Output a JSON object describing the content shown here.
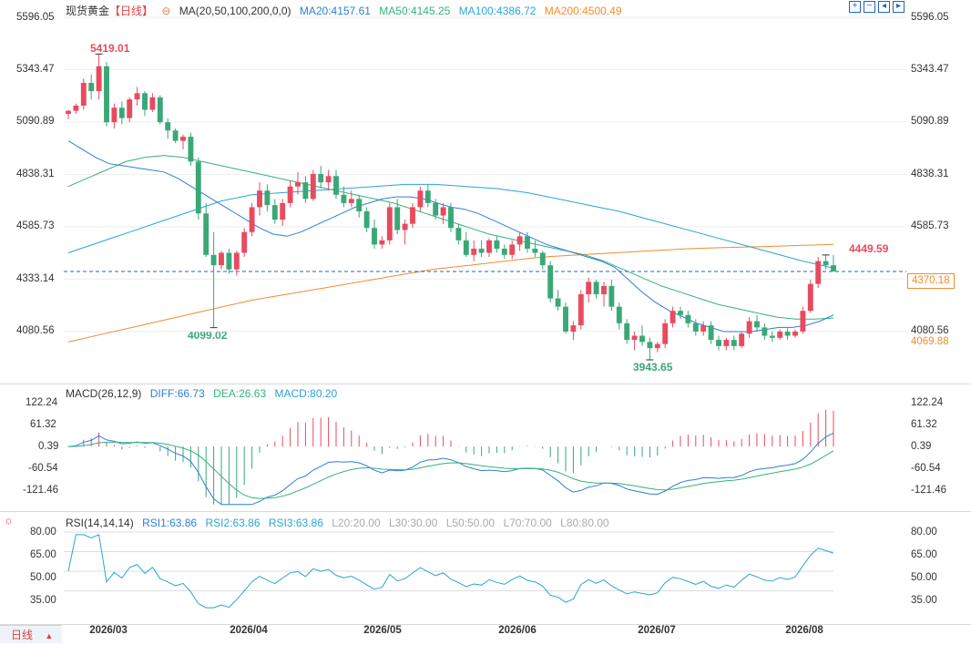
{
  "instrument": {
    "name": "现货黄金",
    "period": "【日线】"
  },
  "ma_legend": {
    "label": "MA(20,50,100,200,0,0)",
    "ma20": "MA20:4157.61",
    "ma50": "MA50:4145.25",
    "ma100": "MA100:4386.72",
    "ma200": "MA200:4500.49"
  },
  "macd_legend": {
    "label": "MACD(26,12,9)",
    "diff": "DIFF:66.73",
    "dea": "DEA:26.63",
    "macd": "MACD:80.20"
  },
  "rsi_legend": {
    "label": "RSI(14,14,14)",
    "rsi1": "RSI1:63.86",
    "rsi2": "RSI2:63.86",
    "rsi3": "RSI3:63.86",
    "l20": "L20:20.00",
    "l30": "L30:30.00",
    "l50": "L50:50.00",
    "l70": "L70:70.00",
    "l80": "L80:80.00"
  },
  "timeframe_button": "日线",
  "colors": {
    "up": "#e84a5f",
    "down": "#3aa876",
    "ma20": "#2b7fd8",
    "ma50": "#34b378",
    "ma100": "#2aa4d8",
    "ma200": "#f08c2e",
    "rsi": "#2aa4d8",
    "diff": "#2b7fd8",
    "dea": "#34b378"
  },
  "price_axis_labels": [
    "5596.05",
    "5343.47",
    "5090.89",
    "4838.31",
    "4585.73",
    "4333.14",
    "4080.56"
  ],
  "macd_axis_labels": [
    "122.24",
    "61.32",
    "0.39",
    "-60.54",
    "-121.46"
  ],
  "rsi_axis_labels": [
    "80.00",
    "65.00",
    "50.00",
    "35.00"
  ],
  "x_axis_labels": [
    "2026/03",
    "2026/04",
    "2026/05",
    "2026/06",
    "2026/07",
    "2026/08"
  ],
  "annotations": {
    "high": "5419.01",
    "low1": "4099.02",
    "low2": "3943.65",
    "last_high": "4449.59"
  },
  "right_tags": {
    "current": "4370.18",
    "low_tag": "4069.88"
  },
  "chart_data": [
    {
      "type": "candlestick",
      "title": "现货黄金【日线】",
      "ylim": [
        3943.65,
        5596.05
      ],
      "x": [
        "2026/03",
        "2026/04",
        "2026/05",
        "2026/06",
        "2026/07",
        "2026/08"
      ],
      "candles": [
        [
          5130,
          5150,
          5105,
          5145
        ],
        [
          5145,
          5180,
          5130,
          5170
        ],
        [
          5170,
          5300,
          5150,
          5280
        ],
        [
          5280,
          5320,
          5200,
          5240
        ],
        [
          5240,
          5419.01,
          5200,
          5360
        ],
        [
          5360,
          5380,
          5070,
          5090
        ],
        [
          5090,
          5180,
          5060,
          5160
        ],
        [
          5160,
          5190,
          5080,
          5110
        ],
        [
          5110,
          5210,
          5090,
          5200
        ],
        [
          5200,
          5260,
          5170,
          5230
        ],
        [
          5230,
          5240,
          5120,
          5150
        ],
        [
          5150,
          5230,
          5140,
          5210
        ],
        [
          5210,
          5220,
          5080,
          5090
        ],
        [
          5090,
          5110,
          5010,
          5050
        ],
        [
          5050,
          5060,
          4990,
          5000
        ],
        [
          5000,
          5030,
          4960,
          5020
        ],
        [
          5020,
          5040,
          4880,
          4900
        ],
        [
          4900,
          4920,
          4620,
          4650
        ],
        [
          4650,
          4700,
          4440,
          4450
        ],
        [
          4450,
          4560,
          4099.02,
          4400
        ],
        [
          4400,
          4470,
          4380,
          4460
        ],
        [
          4460,
          4480,
          4360,
          4380
        ],
        [
          4380,
          4470,
          4350,
          4460
        ],
        [
          4460,
          4580,
          4440,
          4560
        ],
        [
          4560,
          4700,
          4540,
          4680
        ],
        [
          4680,
          4800,
          4640,
          4760
        ],
        [
          4760,
          4790,
          4660,
          4690
        ],
        [
          4690,
          4720,
          4600,
          4620
        ],
        [
          4620,
          4720,
          4590,
          4700
        ],
        [
          4700,
          4810,
          4680,
          4780
        ],
        [
          4780,
          4850,
          4740,
          4800
        ],
        [
          4800,
          4830,
          4700,
          4720
        ],
        [
          4720,
          4860,
          4710,
          4840
        ],
        [
          4840,
          4880,
          4770,
          4800
        ],
        [
          4800,
          4860,
          4760,
          4830
        ],
        [
          4830,
          4860,
          4720,
          4740
        ],
        [
          4740,
          4780,
          4680,
          4700
        ],
        [
          4700,
          4760,
          4680,
          4720
        ],
        [
          4720,
          4740,
          4630,
          4660
        ],
        [
          4660,
          4680,
          4560,
          4580
        ],
        [
          4580,
          4620,
          4480,
          4500
        ],
        [
          4500,
          4540,
          4480,
          4520
        ],
        [
          4520,
          4700,
          4500,
          4680
        ],
        [
          4680,
          4720,
          4550,
          4570
        ],
        [
          4570,
          4620,
          4500,
          4600
        ],
        [
          4600,
          4700,
          4580,
          4680
        ],
        [
          4680,
          4780,
          4660,
          4760
        ],
        [
          4760,
          4790,
          4680,
          4700
        ],
        [
          4700,
          4720,
          4620,
          4640
        ],
        [
          4640,
          4700,
          4600,
          4680
        ],
        [
          4680,
          4700,
          4560,
          4580
        ],
        [
          4580,
          4600,
          4500,
          4520
        ],
        [
          4520,
          4560,
          4440,
          4450
        ],
        [
          4450,
          4520,
          4420,
          4480
        ],
        [
          4480,
          4520,
          4440,
          4460
        ],
        [
          4460,
          4530,
          4440,
          4520
        ],
        [
          4520,
          4540,
          4460,
          4480
        ],
        [
          4480,
          4500,
          4430,
          4450
        ],
        [
          4450,
          4520,
          4430,
          4500
        ],
        [
          4500,
          4560,
          4470,
          4540
        ],
        [
          4540,
          4560,
          4460,
          4480
        ],
        [
          4480,
          4520,
          4440,
          4460
        ],
        [
          4460,
          4470,
          4380,
          4400
        ],
        [
          4400,
          4420,
          4220,
          4240
        ],
        [
          4240,
          4280,
          4180,
          4200
        ],
        [
          4200,
          4220,
          4070,
          4080
        ],
        [
          4080,
          4130,
          4040,
          4110
        ],
        [
          4110,
          4280,
          4090,
          4260
        ],
        [
          4260,
          4340,
          4220,
          4320
        ],
        [
          4320,
          4330,
          4240,
          4260
        ],
        [
          4260,
          4320,
          4200,
          4300
        ],
        [
          4300,
          4330,
          4180,
          4200
        ],
        [
          4200,
          4220,
          4090,
          4120
        ],
        [
          4120,
          4140,
          4020,
          4040
        ],
        [
          4040,
          4080,
          3990,
          4060
        ],
        [
          4060,
          4110,
          4010,
          4030
        ],
        [
          4030,
          4050,
          3943.65,
          4000
        ],
        [
          4000,
          4030,
          3980,
          4020
        ],
        [
          4020,
          4140,
          4000,
          4120
        ],
        [
          4120,
          4200,
          4100,
          4180
        ],
        [
          4180,
          4200,
          4140,
          4160
        ],
        [
          4160,
          4180,
          4100,
          4120
        ],
        [
          4120,
          4140,
          4060,
          4080
        ],
        [
          4080,
          4130,
          4060,
          4110
        ],
        [
          4110,
          4130,
          4020,
          4040
        ],
        [
          4040,
          4060,
          3990,
          4010
        ],
        [
          4010,
          4050,
          3990,
          4040
        ],
        [
          4040,
          4060,
          3990,
          4010
        ],
        [
          4010,
          4080,
          4000,
          4070
        ],
        [
          4070,
          4150,
          4050,
          4130
        ],
        [
          4130,
          4160,
          4080,
          4100
        ],
        [
          4100,
          4120,
          4040,
          4060
        ],
        [
          4060,
          4080,
          4030,
          4050
        ],
        [
          4050,
          4090,
          4040,
          4080
        ],
        [
          4080,
          4100,
          4040,
          4060
        ],
        [
          4060,
          4090,
          4050,
          4080
        ],
        [
          4080,
          4200,
          4070,
          4180
        ],
        [
          4180,
          4330,
          4170,
          4310
        ],
        [
          4310,
          4440,
          4290,
          4420
        ],
        [
          4420,
          4449.59,
          4380,
          4400
        ],
        [
          4400,
          4450,
          4370,
          4370.18
        ]
      ],
      "ma20": [
        5000,
        4960,
        4920,
        4890,
        4880,
        4870,
        4860,
        4850,
        4820,
        4780,
        4740,
        4700,
        4660,
        4620,
        4580,
        4550,
        4540,
        4560,
        4590,
        4620,
        4650,
        4680,
        4700,
        4720,
        4730,
        4730,
        4720,
        4700,
        4680,
        4670,
        4650,
        4620,
        4590,
        4560,
        4530,
        4500,
        4480,
        4460,
        4440,
        4420,
        4390,
        4330,
        4270,
        4220,
        4180,
        4150,
        4120,
        4100,
        4080,
        4080,
        4080,
        4090,
        4100,
        4100,
        4110,
        4130,
        4160
      ],
      "ma50": [
        4780,
        4820,
        4860,
        4900,
        4920,
        4930,
        4920,
        4900,
        4880,
        4860,
        4840,
        4820,
        4800,
        4780,
        4760,
        4740,
        4720,
        4700,
        4670,
        4640,
        4610,
        4580,
        4550,
        4530,
        4510,
        4490,
        4470,
        4450,
        4420,
        4380,
        4340,
        4300,
        4270,
        4240,
        4210,
        4190,
        4170,
        4150,
        4140,
        4140,
        4145.25
      ],
      "ma100": [
        4460,
        4510,
        4560,
        4610,
        4660,
        4710,
        4740,
        4750,
        4760,
        4770,
        4780,
        4790,
        4790,
        4780,
        4770,
        4750,
        4720,
        4690,
        4660,
        4620,
        4580,
        4540,
        4500,
        4460,
        4420,
        4386.72
      ],
      "ma200": [
        4030,
        4070,
        4110,
        4150,
        4190,
        4230,
        4260,
        4290,
        4320,
        4350,
        4380,
        4400,
        4420,
        4440,
        4450,
        4460,
        4470,
        4480,
        4485,
        4490,
        4495,
        4500.49
      ]
    },
    {
      "type": "macd",
      "title": "MACD(26,12,9)",
      "ylim": [
        -121.46,
        122.24
      ],
      "diff_last": 66.73,
      "dea_last": 26.63,
      "macd_last": 80.2
    },
    {
      "type": "line",
      "title": "RSI(14,14,14)",
      "ylim": [
        20,
        80
      ],
      "levels": [
        20,
        30,
        50,
        70,
        80
      ],
      "rsi_last": 63.86
    }
  ]
}
